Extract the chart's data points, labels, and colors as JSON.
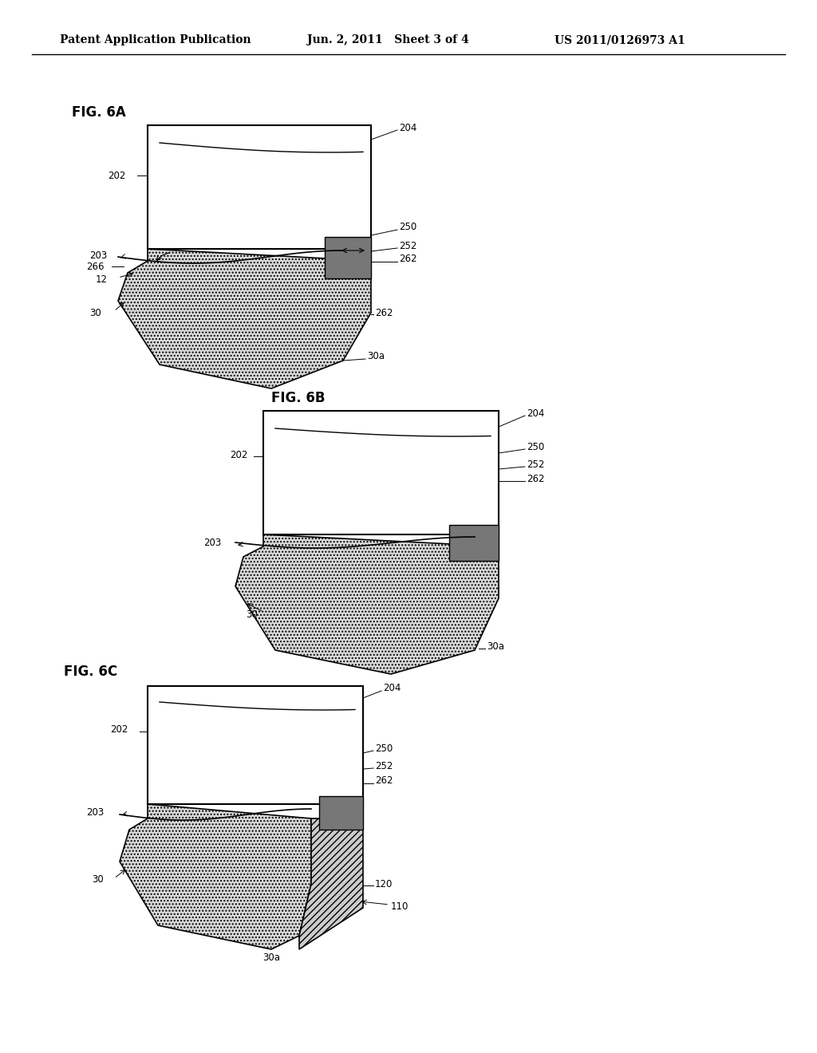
{
  "bg_color": "#ffffff",
  "header_left": "Patent Application Publication",
  "header_mid": "Jun. 2, 2011   Sheet 3 of 4",
  "header_right": "US 2011/0126973 A1",
  "lfs": 8.5
}
